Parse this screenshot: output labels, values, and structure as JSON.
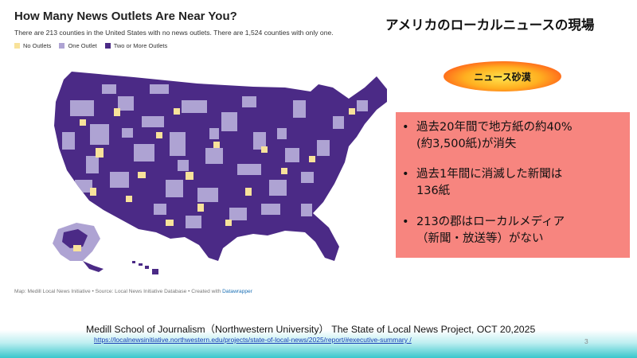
{
  "map": {
    "title": "How Many News Outlets Are Near You?",
    "subtitle": "There are 213 counties in the United States with no news outlets. There are 1,524 counties with only one.",
    "legend": [
      {
        "label": "No Outlets",
        "color": "#f8e29a"
      },
      {
        "label": "One Outlet",
        "color": "#aea3d3"
      },
      {
        "label": "Two or More Outlets",
        "color": "#4b2a86"
      }
    ],
    "credit_text": "Map: Medill Local News Initiative • Source: Local News Initiative Database • Created with ",
    "credit_link": "Datawrapper"
  },
  "slide": {
    "title": "アメリカのローカルニュースの現場",
    "badge": "ニュース砂漠",
    "bullets": [
      {
        "line1": "過去20年間で地方紙の約40%",
        "line2": "(約3,500紙)が消失"
      },
      {
        "line1": "過去1年間に消滅した新聞は",
        "line2": "136紙"
      },
      {
        "line1": "213の郡はローカルメディア",
        "line2": "（新聞・放送等）がない"
      }
    ],
    "bullet_symbol": "•",
    "footer_citation": "Medill School of Journalism（Northwestern University）  The State of Local News Project, OCT 20,2025",
    "footer_url": "https://localnewsinitiative.northwestern.edu/projects/state-of-local-news/2025/report/#executive-summary /",
    "page_number": "3"
  }
}
